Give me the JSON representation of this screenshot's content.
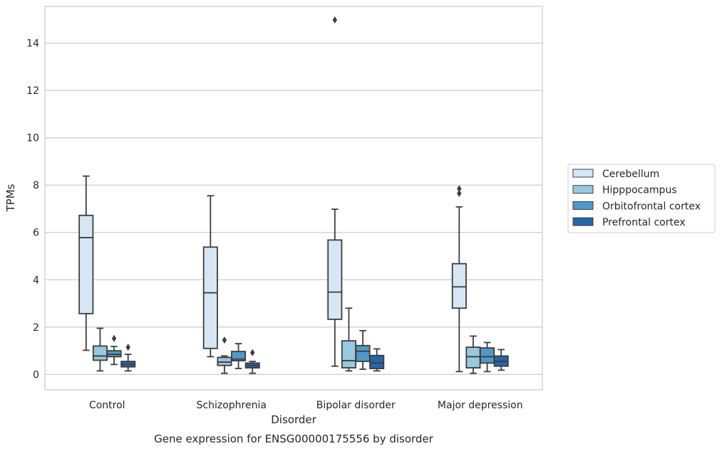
{
  "chart_data": {
    "type": "box",
    "title": "Gene expression for ENSG00000175556 by disorder",
    "xlabel": "Disorder",
    "ylabel": "TPMs",
    "ylim": [
      -0.65,
      15.55
    ],
    "yticks": [
      0,
      2,
      4,
      6,
      8,
      10,
      12,
      14
    ],
    "grid": "horizontal",
    "legend_position": "right",
    "categories": [
      "Control",
      "Schizophrenia",
      "Bipolar disorder",
      "Major depression"
    ],
    "series": [
      {
        "name": "Cerebellum",
        "color": "#d6e6f4",
        "boxes": [
          {
            "whislo": 1.02,
            "q1": 2.57,
            "med": 5.78,
            "q3": 6.72,
            "whishi": 8.38,
            "fliers": []
          },
          {
            "whislo": 0.75,
            "q1": 1.1,
            "med": 3.45,
            "q3": 5.38,
            "whishi": 7.55,
            "fliers": []
          },
          {
            "whislo": 0.35,
            "q1": 2.33,
            "med": 3.48,
            "q3": 5.68,
            "whishi": 6.98,
            "fliers": [
              14.98
            ]
          },
          {
            "whislo": 0.12,
            "q1": 2.8,
            "med": 3.7,
            "q3": 4.68,
            "whishi": 7.08,
            "fliers": [
              7.65,
              7.85
            ]
          }
        ]
      },
      {
        "name": "Hipppocampus",
        "color": "#9ac8e0",
        "boxes": [
          {
            "whislo": 0.15,
            "q1": 0.6,
            "med": 0.78,
            "q3": 1.2,
            "whishi": 1.95,
            "fliers": []
          },
          {
            "whislo": 0.05,
            "q1": 0.38,
            "med": 0.52,
            "q3": 0.72,
            "whishi": 0.78,
            "fliers": [
              1.45
            ]
          },
          {
            "whislo": 0.15,
            "q1": 0.28,
            "med": 0.58,
            "q3": 1.42,
            "whishi": 2.8,
            "fliers": []
          },
          {
            "whislo": 0.05,
            "q1": 0.28,
            "med": 0.75,
            "q3": 1.15,
            "whishi": 1.62,
            "fliers": []
          }
        ]
      },
      {
        "name": "Orbitofrontal cortex",
        "color": "#5198c8",
        "boxes": [
          {
            "whislo": 0.42,
            "q1": 0.75,
            "med": 0.85,
            "q3": 1.0,
            "whishi": 1.18,
            "fliers": [
              1.52
            ]
          },
          {
            "whislo": 0.25,
            "q1": 0.58,
            "med": 0.65,
            "q3": 0.97,
            "whishi": 1.3,
            "fliers": []
          },
          {
            "whislo": 0.22,
            "q1": 0.55,
            "med": 0.98,
            "q3": 1.22,
            "whishi": 1.85,
            "fliers": []
          },
          {
            "whislo": 0.12,
            "q1": 0.48,
            "med": 0.75,
            "q3": 1.12,
            "whishi": 1.35,
            "fliers": []
          }
        ]
      },
      {
        "name": "Prefrontal cortex",
        "color": "#2665a8",
        "boxes": [
          {
            "whislo": 0.15,
            "q1": 0.32,
            "med": 0.42,
            "q3": 0.55,
            "whishi": 0.85,
            "fliers": [
              1.15
            ]
          },
          {
            "whislo": 0.05,
            "q1": 0.28,
            "med": 0.38,
            "q3": 0.48,
            "whishi": 0.55,
            "fliers": [
              0.92
            ]
          },
          {
            "whislo": 0.15,
            "q1": 0.25,
            "med": 0.48,
            "q3": 0.8,
            "whishi": 1.08,
            "fliers": []
          },
          {
            "whislo": 0.18,
            "q1": 0.35,
            "med": 0.55,
            "q3": 0.78,
            "whishi": 1.05,
            "fliers": []
          }
        ]
      }
    ]
  }
}
